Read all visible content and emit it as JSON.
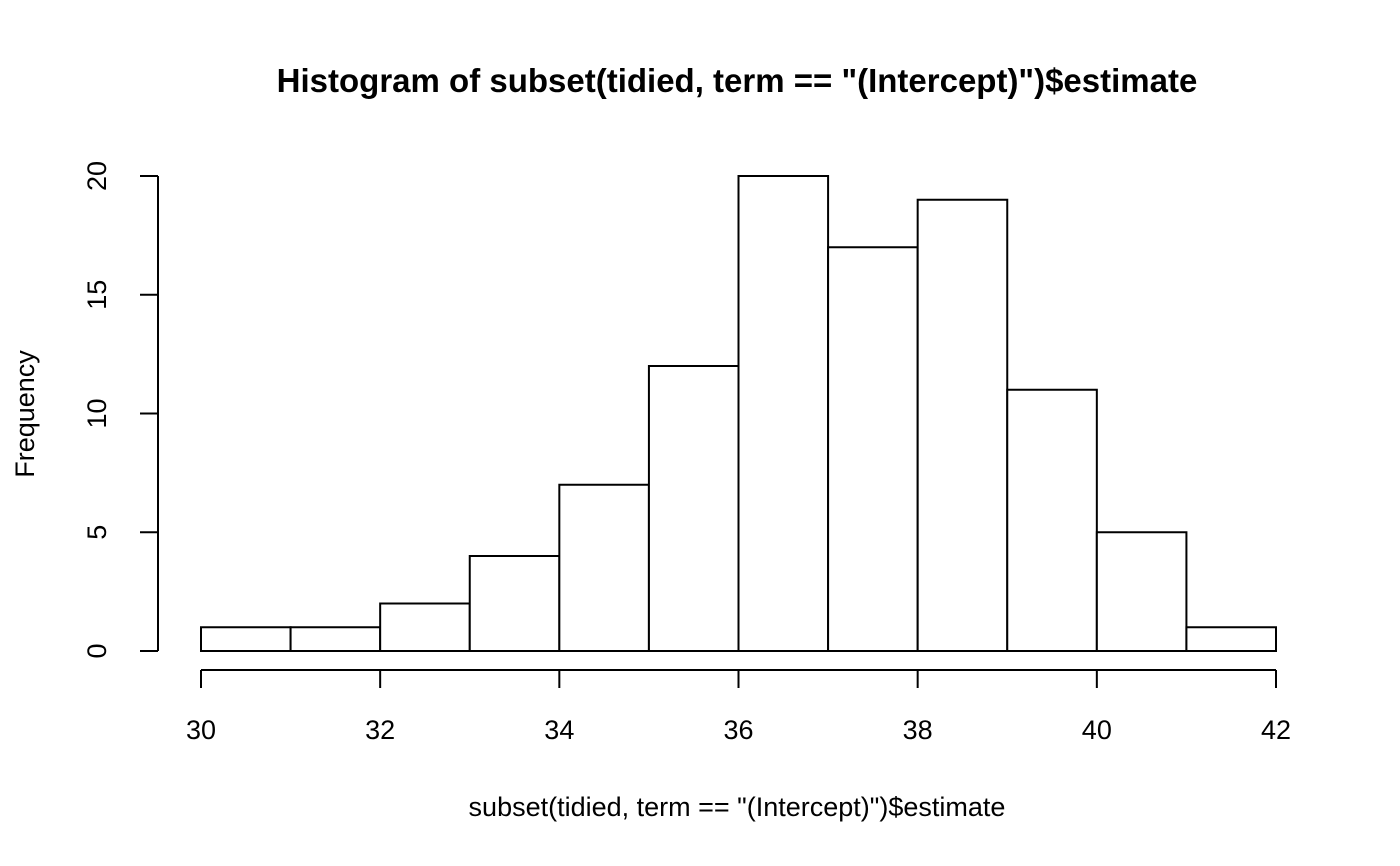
{
  "chart_data": {
    "type": "bar",
    "title": "Histogram of subset(tidied, term == \"(Intercept)\")$estimate",
    "xlabel": "subset(tidied, term == \"(Intercept)\")$estimate",
    "ylabel": "Frequency",
    "bins": [
      {
        "start": 30,
        "end": 31,
        "count": 1
      },
      {
        "start": 31,
        "end": 32,
        "count": 1
      },
      {
        "start": 32,
        "end": 33,
        "count": 2
      },
      {
        "start": 33,
        "end": 34,
        "count": 4
      },
      {
        "start": 34,
        "end": 35,
        "count": 7
      },
      {
        "start": 35,
        "end": 36,
        "count": 12
      },
      {
        "start": 36,
        "end": 37,
        "count": 20
      },
      {
        "start": 37,
        "end": 38,
        "count": 17
      },
      {
        "start": 38,
        "end": 39,
        "count": 19
      },
      {
        "start": 39,
        "end": 40,
        "count": 11
      },
      {
        "start": 40,
        "end": 41,
        "count": 5
      },
      {
        "start": 41,
        "end": 42,
        "count": 1
      }
    ],
    "xlim": [
      30,
      42
    ],
    "ylim": [
      0,
      20
    ],
    "xticks": [
      30,
      32,
      34,
      36,
      38,
      40,
      42
    ],
    "yticks": [
      0,
      5,
      10,
      15,
      20
    ],
    "grid": false,
    "bar_fill": "#ffffff",
    "bar_stroke": "#000000"
  }
}
